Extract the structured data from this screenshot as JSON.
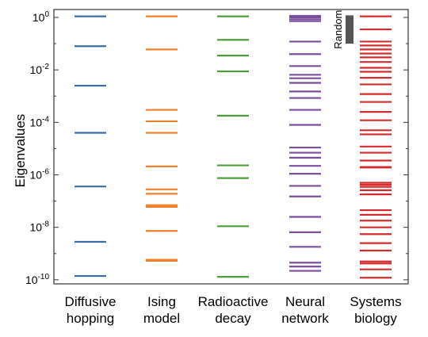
{
  "chart_data": {
    "type": "scatter",
    "ylabel": "Eigenvalues",
    "yscale": "log",
    "ylim": [
      7e-11,
      2.0
    ],
    "yticks": [
      {
        "value": 1.0,
        "base": "10",
        "exp": "0"
      },
      {
        "value": 0.01,
        "base": "10",
        "exp": "-2"
      },
      {
        "value": 0.0001,
        "base": "10",
        "exp": "-4"
      },
      {
        "value": 1e-06,
        "base": "10",
        "exp": "-6"
      },
      {
        "value": 1e-08,
        "base": "10",
        "exp": "-8"
      },
      {
        "value": 1e-10,
        "base": "10",
        "exp": "-10"
      }
    ],
    "grid": false,
    "annotation": {
      "text": "Random",
      "range": [
        0.1,
        1.2
      ],
      "color": "#555555"
    },
    "series": [
      {
        "label_lines": [
          "Diffusive",
          "hopping"
        ],
        "color": "#3a6ea5",
        "values": [
          1.1,
          0.08,
          0.0025,
          4e-05,
          3.6e-07,
          2.8e-09,
          1.4e-10
        ]
      },
      {
        "label_lines": [
          "Ising",
          "model"
        ],
        "color": "#f07f2a",
        "values": [
          1.1,
          0.06,
          0.0003,
          0.00011,
          4e-05,
          2.1e-06,
          2.8e-07,
          1.9e-07,
          7e-08,
          6e-08,
          7.3e-09,
          5.8e-10,
          5.3e-10
        ]
      },
      {
        "label_lines": [
          "Radioactive",
          "decay"
        ],
        "color": "#4c9e3a",
        "values": [
          1.1,
          0.14,
          0.035,
          0.0088,
          0.00018,
          2.3e-06,
          7.5e-07,
          1.1e-08,
          1.3e-10
        ]
      },
      {
        "label_lines": [
          "Neural",
          "network"
        ],
        "color": "#7b4e9e",
        "values": [
          1.15,
          1.0,
          0.85,
          0.72,
          0.12,
          0.04,
          0.014,
          0.0065,
          0.0048,
          0.0032,
          0.0015,
          0.00085,
          0.0003,
          8e-05,
          1.1e-05,
          7e-06,
          4.5e-06,
          2.2e-06,
          1.1e-06,
          3.8e-07,
          1.5e-07,
          2.5e-08,
          6.5e-09,
          1.8e-09,
          4.5e-10,
          3.2e-10,
          2.2e-10
        ]
      },
      {
        "label_lines": [
          "Systems",
          "biology"
        ],
        "color": "#d42c2c",
        "values": [
          1.1,
          0.35,
          0.12,
          0.085,
          0.06,
          0.042,
          0.03,
          0.02,
          0.012,
          0.0085,
          0.005,
          0.0028,
          0.0012,
          0.0006,
          0.00025,
          0.00012,
          5e-05,
          3.5e-05,
          1.2e-05,
          7e-06,
          3.5e-06,
          2e-06,
          1.9e-06,
          5e-07,
          4.2e-07,
          3.5e-07,
          2.6e-07,
          1.8e-07,
          4.5e-08,
          3e-08,
          1.8e-08,
          1e-08,
          5.5e-09,
          2.5e-09,
          1.3e-09,
          5e-10,
          4.2e-10,
          2.5e-10,
          1.2e-10
        ]
      }
    ]
  }
}
